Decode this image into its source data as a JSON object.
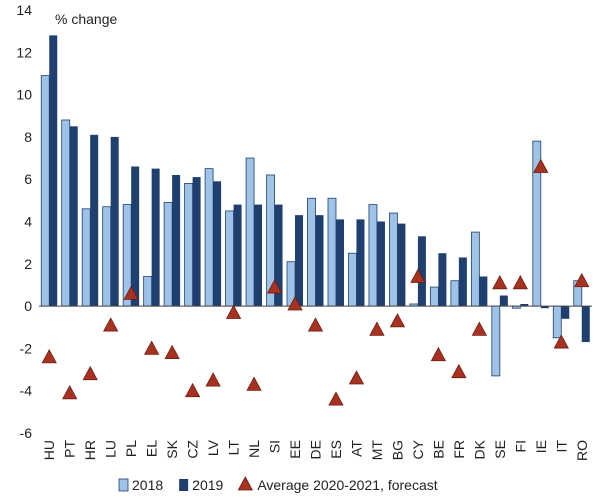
{
  "chart_data": {
    "type": "bar",
    "ylabel": "% change",
    "ylim": [
      -6,
      14
    ],
    "yticks": [
      -6,
      -4,
      -2,
      0,
      2,
      4,
      6,
      8,
      10,
      12,
      14
    ],
    "grid": false,
    "legend_position": "bottom",
    "categories": [
      "HU",
      "PT",
      "HR",
      "LU",
      "PL",
      "EL",
      "SK",
      "CZ",
      "LV",
      "LT",
      "NL",
      "SI",
      "EE",
      "DE",
      "ES",
      "AT",
      "MT",
      "BG",
      "CY",
      "BE",
      "FR",
      "DK",
      "SE",
      "FI",
      "IE",
      "IT",
      "RO"
    ],
    "series": [
      {
        "name": "2018",
        "kind": "bar",
        "color": "#9ec3e6",
        "values": [
          10.9,
          8.8,
          4.6,
          4.7,
          4.8,
          1.4,
          4.9,
          5.8,
          6.5,
          4.5,
          7.0,
          6.2,
          2.1,
          5.1,
          5.1,
          2.5,
          4.8,
          4.4,
          0.1,
          0.9,
          1.2,
          3.5,
          -3.3,
          -0.1,
          7.8,
          -1.5,
          1.2
        ]
      },
      {
        "name": "2019",
        "kind": "bar",
        "color": "#1f3f6e",
        "values": [
          12.8,
          8.5,
          8.1,
          8.0,
          6.6,
          6.5,
          6.2,
          6.1,
          5.9,
          4.8,
          4.8,
          4.8,
          4.3,
          4.3,
          4.1,
          4.1,
          4.0,
          3.9,
          3.3,
          2.5,
          2.3,
          1.4,
          0.5,
          0.1,
          -0.1,
          -0.6,
          -1.7
        ]
      },
      {
        "name": "Average 2020-2021, forecast",
        "kind": "marker",
        "color": "#a83222",
        "values": [
          -2.4,
          -4.1,
          -3.2,
          -0.9,
          0.6,
          -2.0,
          -2.2,
          -4.0,
          -3.5,
          -0.3,
          -3.7,
          0.9,
          0.1,
          -0.9,
          -4.4,
          -3.4,
          -1.1,
          -0.7,
          1.4,
          -2.3,
          -3.1,
          -1.1,
          1.1,
          1.1,
          6.6,
          -1.7,
          1.2
        ]
      }
    ]
  }
}
